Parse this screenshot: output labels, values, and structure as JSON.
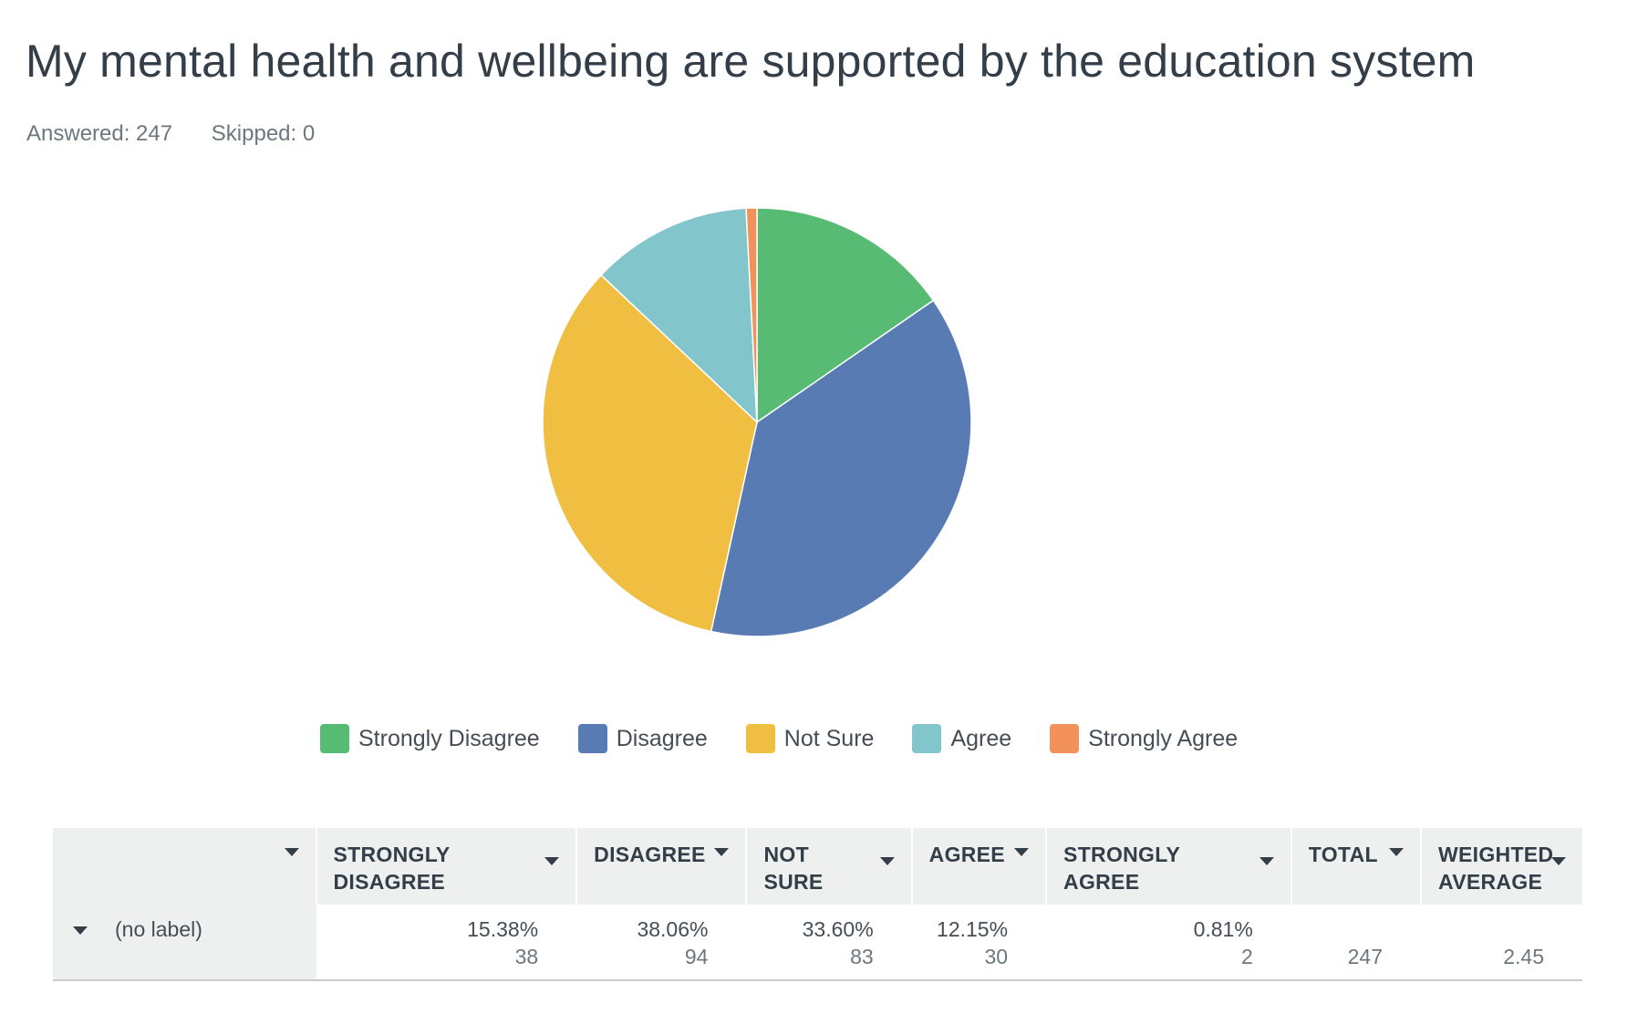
{
  "title": "My mental health and wellbeing are supported by the education system",
  "answered": "Answered: 247",
  "skipped": "Skipped: 0",
  "chart_data": {
    "type": "pie",
    "title": "My mental health and wellbeing are supported by the education system",
    "categories": [
      "Strongly Disagree",
      "Disagree",
      "Not Sure",
      "Agree",
      "Strongly Agree"
    ],
    "values": [
      15.38,
      38.06,
      33.6,
      12.15,
      0.81
    ],
    "counts": [
      38,
      94,
      83,
      30,
      2
    ],
    "colors": [
      "#57bb73",
      "#587bb3",
      "#f0bf41",
      "#82c6cb",
      "#f29159"
    ],
    "legend_position": "bottom"
  },
  "table": {
    "headers": [
      "",
      "STRONGLY DISAGREE",
      "DISAGREE",
      "NOT SURE",
      "AGREE",
      "STRONGLY AGREE",
      "TOTAL",
      "WEIGHTED AVERAGE"
    ],
    "row": {
      "label": "(no label)",
      "cells": [
        {
          "pct": "15.38%",
          "count": "38"
        },
        {
          "pct": "38.06%",
          "count": "94"
        },
        {
          "pct": "33.60%",
          "count": "83"
        },
        {
          "pct": "12.15%",
          "count": "30"
        },
        {
          "pct": "0.81%",
          "count": "2"
        },
        {
          "pct": "",
          "count": "247"
        },
        {
          "pct": "",
          "count": "2.45"
        }
      ]
    }
  }
}
